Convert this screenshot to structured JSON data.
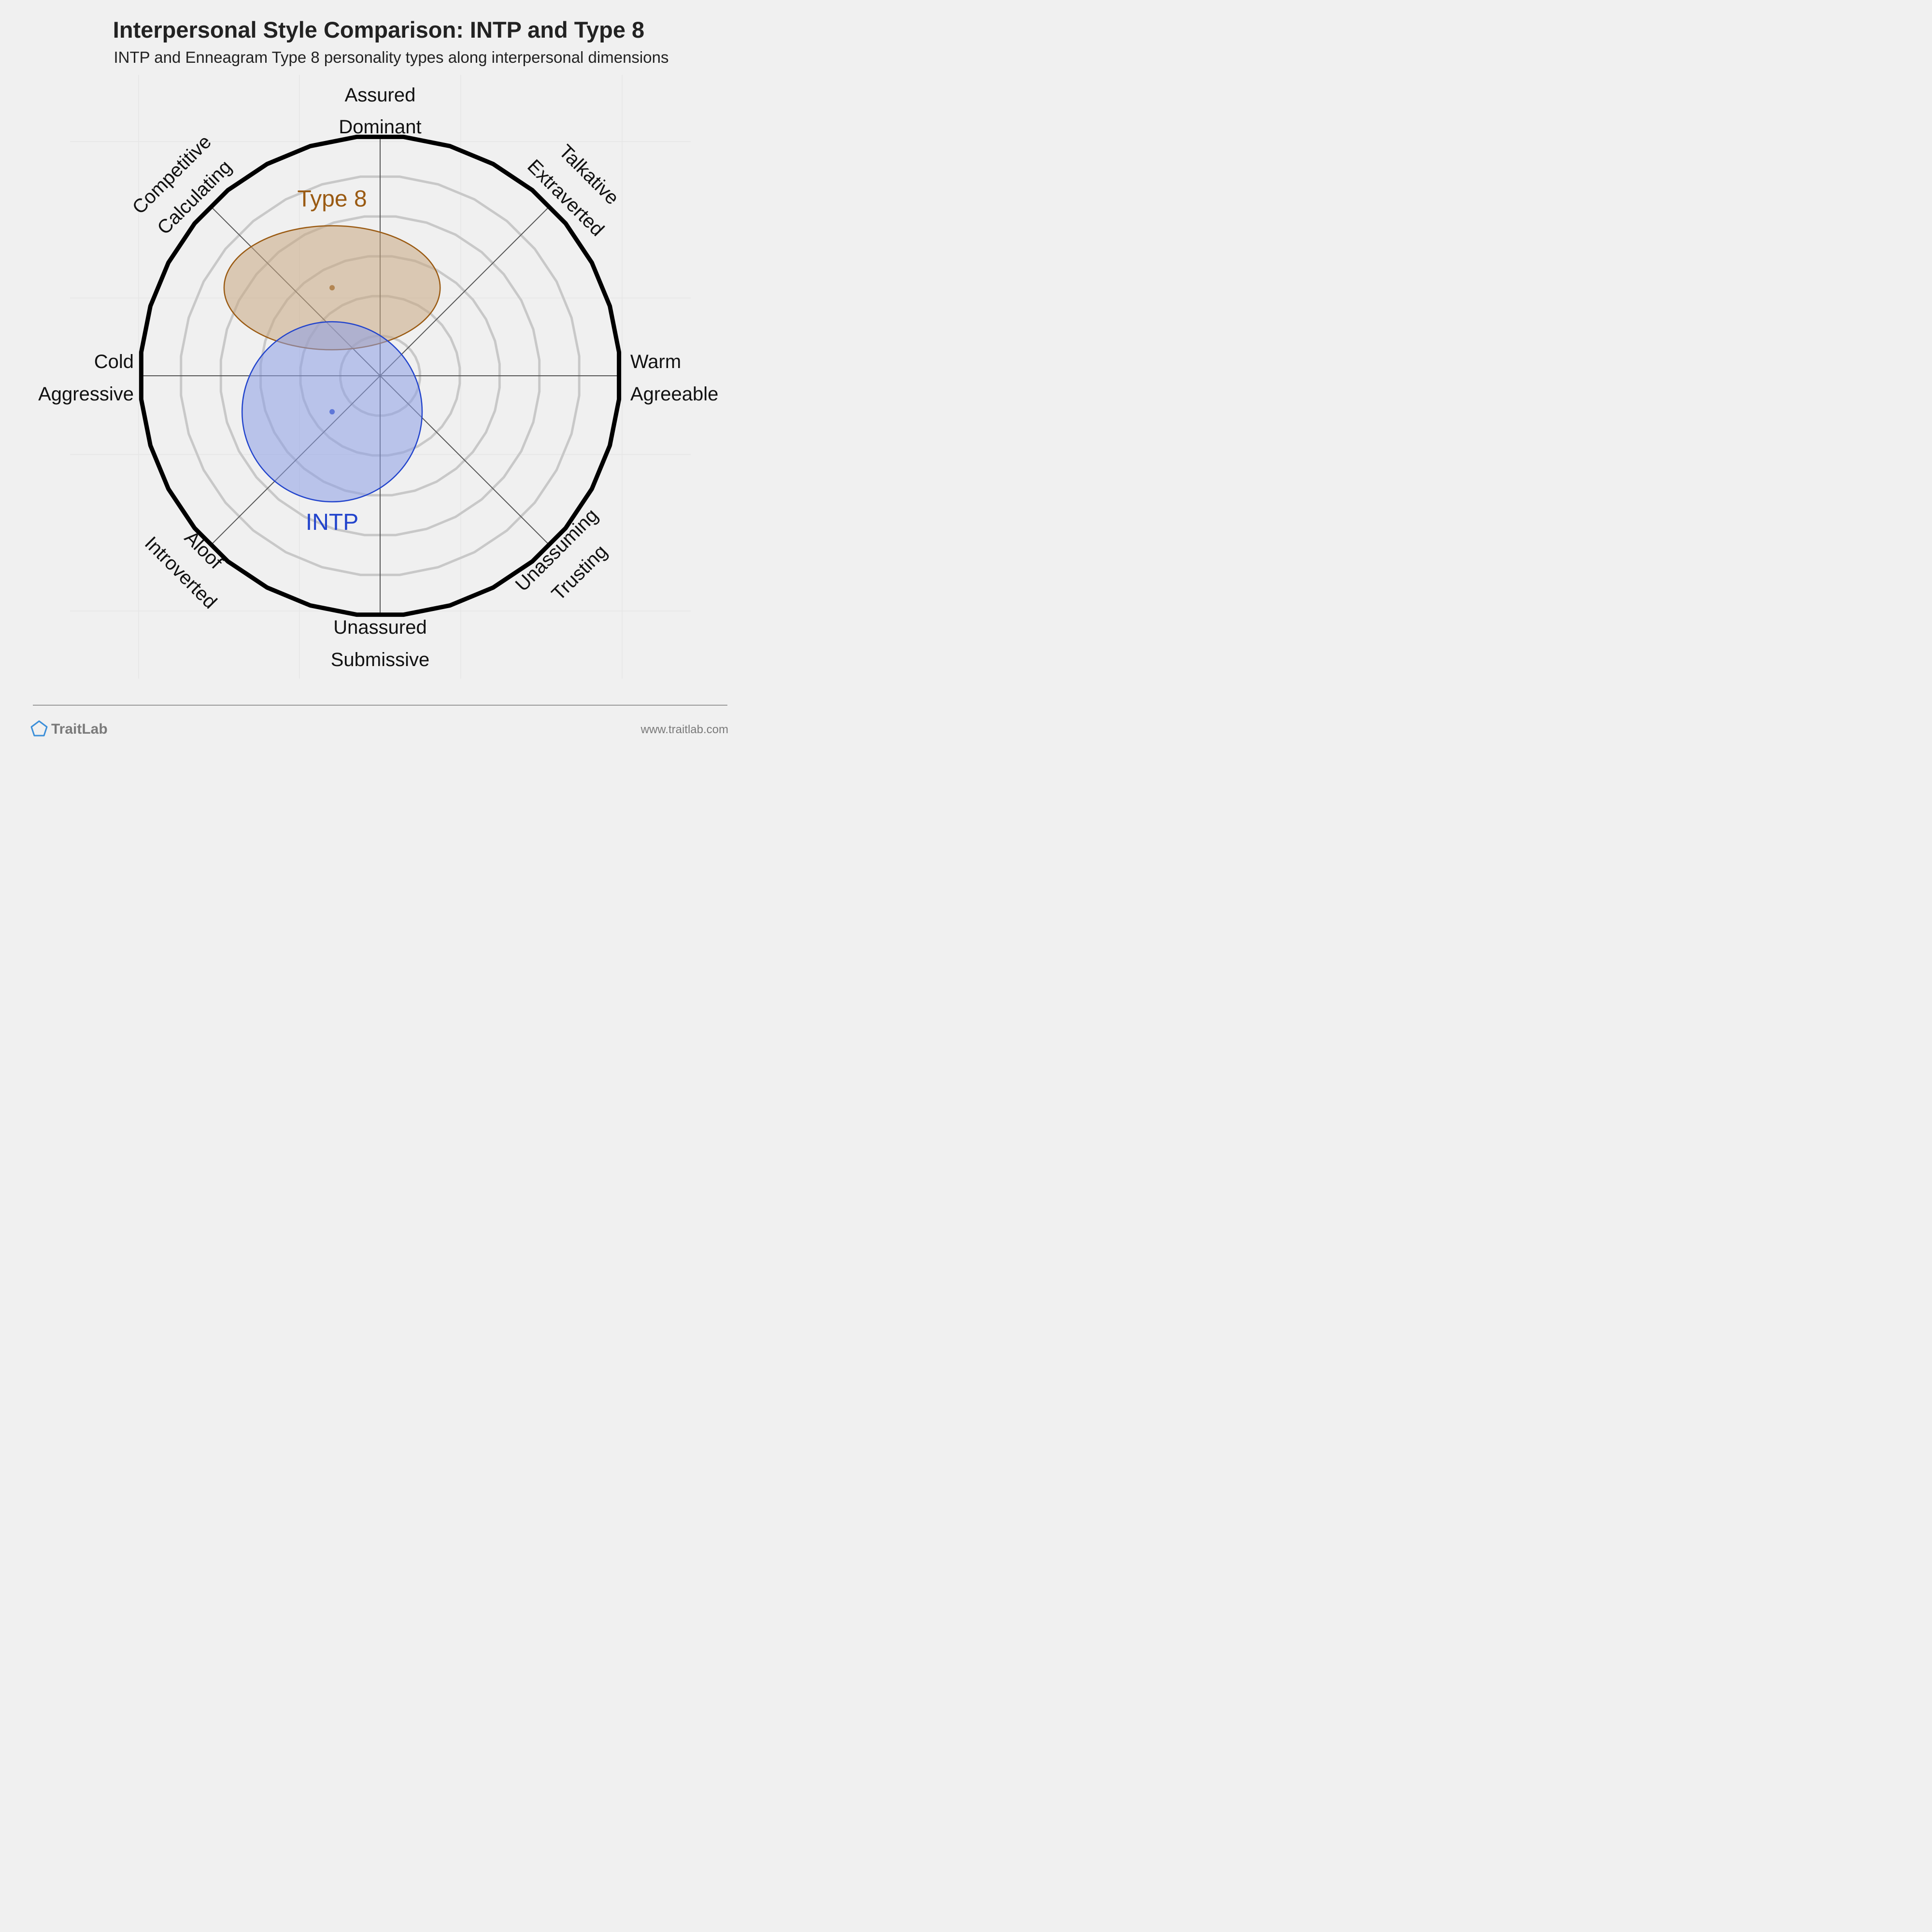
{
  "chart_data": {
    "type": "scatter",
    "title": "Interpersonal Style Comparison: INTP and Type 8",
    "subtitle": "INTP and Enneagram Type 8 personality types along interpersonal dimensions",
    "axes": {
      "top": [
        "Assured",
        "Dominant"
      ],
      "top_right": [
        "Talkative",
        "Extraverted"
      ],
      "right": [
        "Warm",
        "Agreeable"
      ],
      "bottom_right": [
        "Unassuming",
        "Trusting"
      ],
      "bottom": [
        "Unassured",
        "Submissive"
      ],
      "bottom_left": [
        "Aloof",
        "Introverted"
      ],
      "left": [
        "Cold",
        "Aggressive"
      ],
      "top_left": [
        "Competitive",
        "Calculating"
      ]
    },
    "xlim": [
      -6,
      6
    ],
    "ylim": [
      -6,
      6
    ],
    "grid": true,
    "series": [
      {
        "name": "Type 8",
        "x": -1.2,
        "y": 2.2,
        "spread_x": 2.7,
        "spread_y": 1.55,
        "color": "#9a5a12",
        "fill": "#c8a882"
      },
      {
        "name": "INTP",
        "x": -1.2,
        "y": -0.9,
        "spread_x": 2.25,
        "spread_y": 2.25,
        "color": "#2244cc",
        "fill": "#8c9ee6"
      }
    ]
  },
  "footer": {
    "brand": "TraitLab",
    "url": "www.traitlab.com"
  },
  "colors": {
    "background": "#f0f0f0",
    "outer_ring": "#000000",
    "grid_ring": "#c8c8c8",
    "axis_line": "#555555",
    "logo": "#3b8fd9"
  }
}
